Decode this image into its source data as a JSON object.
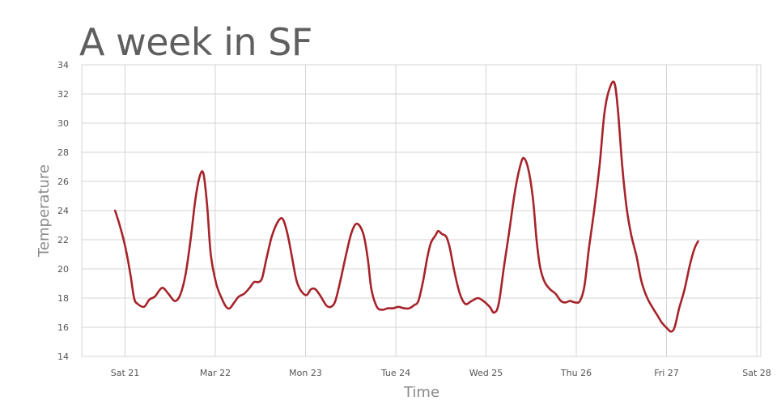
{
  "chart_data": {
    "type": "line",
    "title": "A week in SF",
    "xlabel": "Time",
    "ylabel": "Temperature",
    "ylim": [
      14,
      34
    ],
    "yticks": [
      14,
      16,
      18,
      20,
      22,
      24,
      26,
      28,
      30,
      32,
      34
    ],
    "xlim": [
      -0.1,
      6.9
    ],
    "xticks": [
      {
        "x": 0,
        "label": "Sat 21"
      },
      {
        "x": 1,
        "label": "Mar 22"
      },
      {
        "x": 2,
        "label": "Mon 23"
      },
      {
        "x": 3,
        "label": "Tue 24"
      },
      {
        "x": 4,
        "label": "Wed 25"
      },
      {
        "x": 5,
        "label": "Thu 26"
      },
      {
        "x": 6,
        "label": "Fri 27"
      },
      {
        "x": 7,
        "label": "Sat 28"
      }
    ],
    "grid": true,
    "series": [
      {
        "color": "#a6232a",
        "points": [
          [
            -0.11,
            24.0
          ],
          [
            -0.05,
            22.8
          ],
          [
            0.01,
            21.3
          ],
          [
            0.06,
            19.6
          ],
          [
            0.1,
            18.0
          ],
          [
            0.14,
            17.6
          ],
          [
            0.21,
            17.4
          ],
          [
            0.27,
            17.9
          ],
          [
            0.33,
            18.1
          ],
          [
            0.41,
            18.7
          ],
          [
            0.48,
            18.3
          ],
          [
            0.55,
            17.8
          ],
          [
            0.61,
            18.2
          ],
          [
            0.67,
            19.6
          ],
          [
            0.73,
            22.2
          ],
          [
            0.78,
            24.8
          ],
          [
            0.83,
            26.4
          ],
          [
            0.87,
            26.5
          ],
          [
            0.91,
            24.3
          ],
          [
            0.95,
            21.0
          ],
          [
            1.01,
            19.0
          ],
          [
            1.07,
            18.0
          ],
          [
            1.12,
            17.4
          ],
          [
            1.16,
            17.3
          ],
          [
            1.21,
            17.7
          ],
          [
            1.26,
            18.1
          ],
          [
            1.32,
            18.3
          ],
          [
            1.38,
            18.7
          ],
          [
            1.43,
            19.1
          ],
          [
            1.48,
            19.1
          ],
          [
            1.52,
            19.4
          ],
          [
            1.57,
            20.8
          ],
          [
            1.63,
            22.3
          ],
          [
            1.7,
            23.3
          ],
          [
            1.75,
            23.4
          ],
          [
            1.8,
            22.4
          ],
          [
            1.85,
            20.8
          ],
          [
            1.9,
            19.2
          ],
          [
            1.95,
            18.5
          ],
          [
            2.01,
            18.2
          ],
          [
            2.06,
            18.6
          ],
          [
            2.11,
            18.6
          ],
          [
            2.17,
            18.1
          ],
          [
            2.23,
            17.5
          ],
          [
            2.28,
            17.4
          ],
          [
            2.33,
            17.8
          ],
          [
            2.39,
            19.3
          ],
          [
            2.45,
            21.0
          ],
          [
            2.51,
            22.5
          ],
          [
            2.57,
            23.1
          ],
          [
            2.64,
            22.4
          ],
          [
            2.69,
            20.7
          ],
          [
            2.73,
            18.6
          ],
          [
            2.79,
            17.4
          ],
          [
            2.85,
            17.2
          ],
          [
            2.91,
            17.3
          ],
          [
            2.97,
            17.3
          ],
          [
            3.03,
            17.4
          ],
          [
            3.09,
            17.3
          ],
          [
            3.15,
            17.3
          ],
          [
            3.2,
            17.5
          ],
          [
            3.25,
            17.8
          ],
          [
            3.3,
            19.1
          ],
          [
            3.35,
            20.8
          ],
          [
            3.39,
            21.8
          ],
          [
            3.44,
            22.3
          ],
          [
            3.47,
            22.6
          ],
          [
            3.51,
            22.4
          ],
          [
            3.56,
            22.2
          ],
          [
            3.6,
            21.4
          ],
          [
            3.65,
            19.8
          ],
          [
            3.71,
            18.3
          ],
          [
            3.77,
            17.6
          ],
          [
            3.84,
            17.8
          ],
          [
            3.91,
            18.0
          ],
          [
            3.97,
            17.8
          ],
          [
            4.04,
            17.4
          ],
          [
            4.09,
            17.0
          ],
          [
            4.14,
            17.6
          ],
          [
            4.2,
            20.2
          ],
          [
            4.26,
            22.7
          ],
          [
            4.32,
            25.3
          ],
          [
            4.38,
            27.1
          ],
          [
            4.42,
            27.6
          ],
          [
            4.47,
            26.8
          ],
          [
            4.52,
            24.8
          ],
          [
            4.56,
            22.0
          ],
          [
            4.6,
            20.1
          ],
          [
            4.65,
            19.1
          ],
          [
            4.71,
            18.6
          ],
          [
            4.77,
            18.3
          ],
          [
            4.83,
            17.8
          ],
          [
            4.88,
            17.7
          ],
          [
            4.93,
            17.8
          ],
          [
            4.99,
            17.7
          ],
          [
            5.04,
            17.8
          ],
          [
            5.09,
            18.8
          ],
          [
            5.14,
            21.4
          ],
          [
            5.2,
            24.1
          ],
          [
            5.26,
            27.2
          ],
          [
            5.31,
            30.6
          ],
          [
            5.36,
            32.2
          ],
          [
            5.42,
            32.8
          ],
          [
            5.46,
            31.0
          ],
          [
            5.51,
            27.0
          ],
          [
            5.56,
            24.1
          ],
          [
            5.61,
            22.3
          ],
          [
            5.67,
            20.8
          ],
          [
            5.72,
            19.2
          ],
          [
            5.78,
            18.1
          ],
          [
            5.84,
            17.4
          ],
          [
            5.9,
            16.8
          ],
          [
            5.95,
            16.3
          ],
          [
            6.01,
            15.9
          ],
          [
            6.05,
            15.7
          ],
          [
            6.09,
            16.0
          ],
          [
            6.14,
            17.3
          ],
          [
            6.2,
            18.6
          ],
          [
            6.26,
            20.3
          ],
          [
            6.31,
            21.4
          ],
          [
            6.35,
            21.9
          ]
        ]
      }
    ]
  }
}
